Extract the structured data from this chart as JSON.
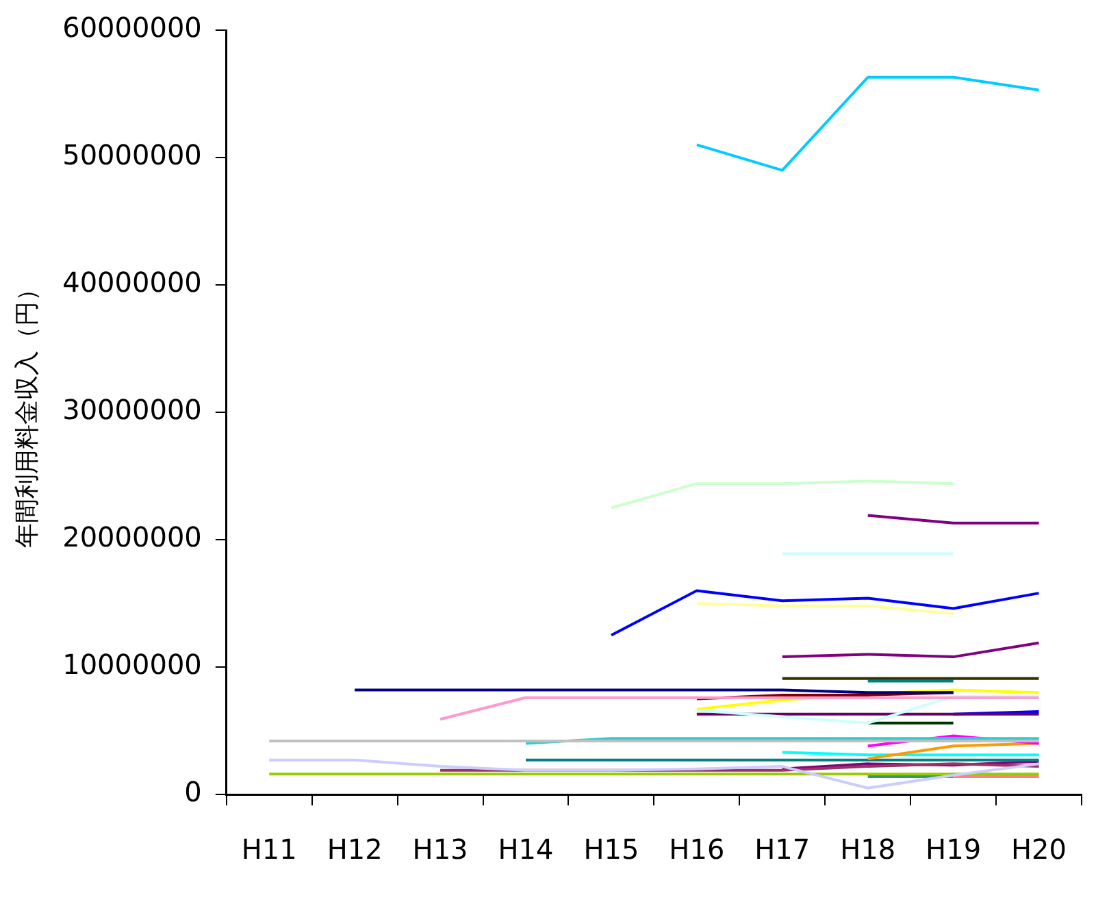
{
  "chart_data": {
    "type": "line",
    "ylabel": "年間利用料金収入（円）",
    "categories": [
      "H11",
      "H12",
      "H13",
      "H14",
      "H15",
      "H16",
      "H17",
      "H18",
      "H19",
      "H20"
    ],
    "ylim": [
      0,
      60000000
    ],
    "yticks": [
      0,
      10000000,
      20000000,
      30000000,
      40000000,
      50000000,
      60000000
    ],
    "grid": false,
    "legend": false,
    "marker": "none",
    "line_style": "solid",
    "series": [
      {
        "color": "#00ccff",
        "values": [
          null,
          null,
          null,
          null,
          null,
          51000000,
          49000000,
          56300000,
          56300000,
          55300000
        ]
      },
      {
        "color": "#ccffcc",
        "values": [
          null,
          null,
          null,
          null,
          22500000,
          24400000,
          24400000,
          24600000,
          24400000,
          null
        ]
      },
      {
        "color": "#800080",
        "values": [
          null,
          null,
          null,
          null,
          null,
          null,
          null,
          21900000,
          21300000,
          21300000
        ]
      },
      {
        "color": "#ccffff",
        "values": [
          null,
          null,
          null,
          null,
          null,
          null,
          18900000,
          18900000,
          18900000,
          null
        ]
      },
      {
        "color": "#0000ff",
        "values": [
          null,
          null,
          null,
          null,
          12500000,
          16000000,
          15200000,
          15400000,
          14600000,
          15800000
        ]
      },
      {
        "color": "#ffff99",
        "values": [
          null,
          null,
          null,
          null,
          null,
          15000000,
          14800000,
          14800000,
          14200000,
          null
        ]
      },
      {
        "color": "#800080",
        "values": [
          null,
          null,
          null,
          null,
          null,
          null,
          10800000,
          11000000,
          10800000,
          11900000
        ]
      },
      {
        "color": "#333300",
        "values": [
          null,
          null,
          null,
          null,
          null,
          null,
          9100000,
          9100000,
          9100000,
          9100000
        ]
      },
      {
        "color": "#008080",
        "values": [
          null,
          null,
          null,
          null,
          null,
          null,
          null,
          8900000,
          8900000,
          null
        ]
      },
      {
        "color": "#000080",
        "values": [
          null,
          8200000,
          8200000,
          8200000,
          8200000,
          8200000,
          8200000,
          8000000,
          8000000,
          null
        ]
      },
      {
        "color": "#ff99cc",
        "values": [
          null,
          null,
          5900000,
          7600000,
          7600000,
          7600000,
          7600000,
          7600000,
          7600000,
          7600000
        ]
      },
      {
        "color": "#800000",
        "values": [
          null,
          null,
          null,
          null,
          null,
          7500000,
          7800000,
          7800000,
          8000000,
          null
        ]
      },
      {
        "color": "#ffff00",
        "values": [
          null,
          null,
          null,
          null,
          null,
          6700000,
          7400000,
          7900000,
          8200000,
          8000000
        ]
      },
      {
        "color": "#ccffff",
        "values": [
          null,
          null,
          null,
          null,
          null,
          6600000,
          6100000,
          5600000,
          7700000,
          7700000
        ]
      },
      {
        "color": "#660066",
        "values": [
          null,
          null,
          null,
          null,
          null,
          6300000,
          6300000,
          6300000,
          6300000,
          6300000
        ]
      },
      {
        "color": "#0000ff",
        "values": [
          null,
          null,
          null,
          null,
          null,
          null,
          null,
          null,
          6300000,
          6500000
        ]
      },
      {
        "color": "#003300",
        "values": [
          null,
          null,
          null,
          null,
          null,
          null,
          null,
          5600000,
          5600000,
          null
        ]
      },
      {
        "color": "#c0c0c0",
        "values": [
          4200000,
          4200000,
          4200000,
          4200000,
          4200000,
          4200000,
          4200000,
          4200000,
          4200000,
          4200000
        ]
      },
      {
        "color": "#33cccc",
        "values": [
          null,
          null,
          null,
          4000000,
          4400000,
          4400000,
          4400000,
          4400000,
          4400000,
          4400000
        ]
      },
      {
        "color": "#ff00ff",
        "values": [
          null,
          null,
          null,
          null,
          null,
          null,
          null,
          3800000,
          4600000,
          4000000
        ]
      },
      {
        "color": "#ff9900",
        "values": [
          null,
          null,
          null,
          null,
          null,
          null,
          null,
          2800000,
          3800000,
          4000000
        ]
      },
      {
        "color": "#00ffff",
        "values": [
          null,
          null,
          null,
          null,
          null,
          null,
          3300000,
          3100000,
          3100000,
          3100000
        ]
      },
      {
        "color": "#ccccff",
        "values": [
          2700000,
          2700000,
          2200000,
          1900000,
          1900000,
          2000000,
          2200000,
          500000,
          1500000,
          2400000
        ]
      },
      {
        "color": "#008080",
        "values": [
          null,
          null,
          null,
          2700000,
          2700000,
          2700000,
          2700000,
          2700000,
          2700000,
          2700000
        ]
      },
      {
        "color": "#993366",
        "values": [
          null,
          null,
          1900000,
          1900000,
          1900000,
          1900000,
          1900000,
          2200000,
          2400000,
          2200000
        ]
      },
      {
        "color": "#800080",
        "values": [
          null,
          null,
          null,
          null,
          null,
          null,
          2000000,
          2400000,
          2300000,
          2600000
        ]
      },
      {
        "color": "#99cc00",
        "values": [
          1600000,
          1600000,
          1600000,
          1600000,
          1600000,
          1600000,
          1600000,
          1600000,
          1600000,
          1600000
        ]
      },
      {
        "color": "#339966",
        "values": [
          null,
          null,
          null,
          null,
          null,
          null,
          null,
          1400000,
          1400000,
          null
        ]
      },
      {
        "color": "#ff8080",
        "values": [
          null,
          null,
          null,
          null,
          null,
          null,
          null,
          null,
          1400000,
          1400000
        ]
      }
    ]
  }
}
